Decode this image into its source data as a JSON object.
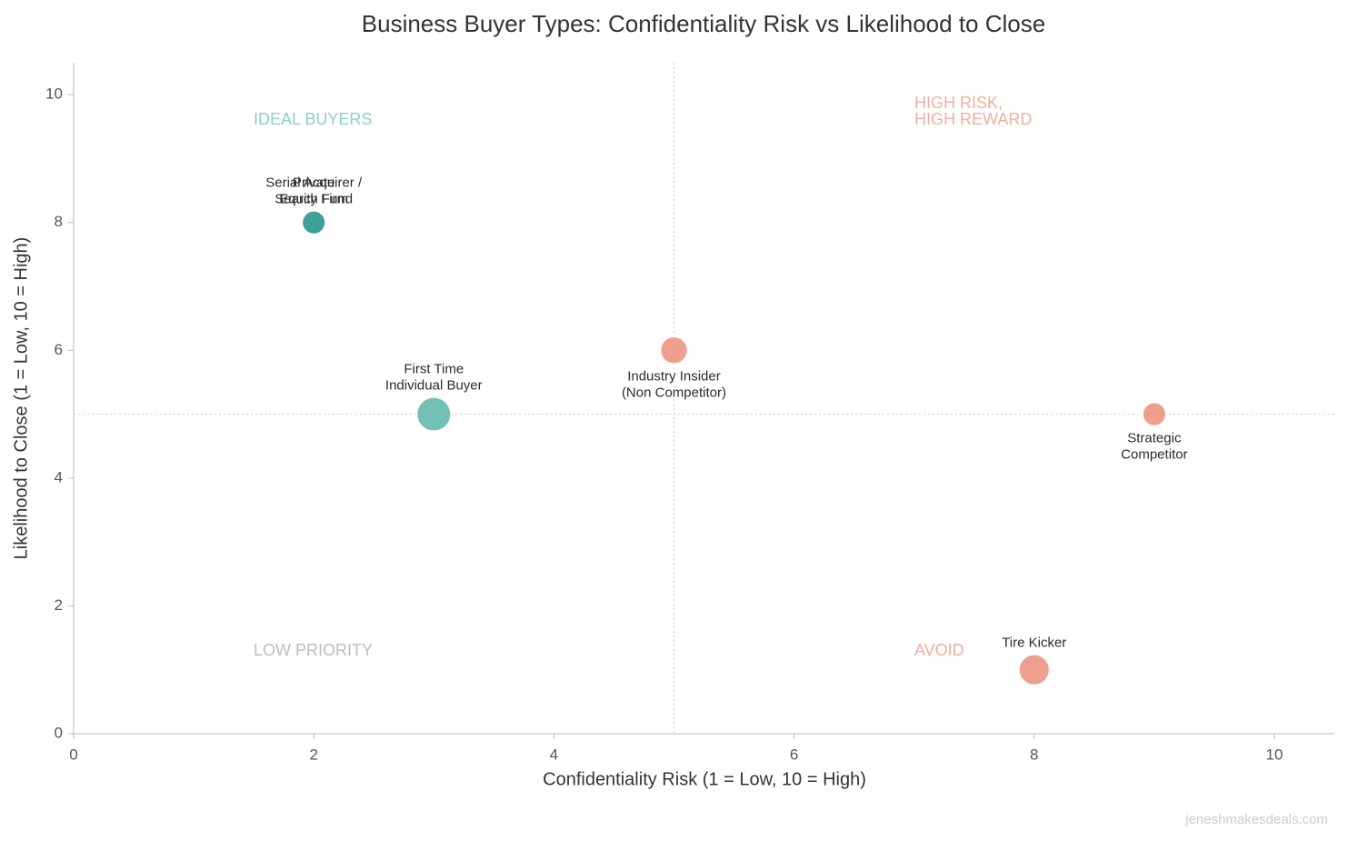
{
  "chart_data": {
    "type": "scatter",
    "title": "Business Buyer Types: Confidentiality Risk vs Likelihood to Close",
    "x_label": "Confidentiality Risk (1 = Low, 10 = High)",
    "y_label": "Likelihood to Close (1 = Low, 10 = High)",
    "labels": [
      "Serial Acquirer /\nSearch Fund",
      "Private\nEquity Firm",
      "First Time\nIndividual Buyer",
      "Industry Insider\n(Non Competitor)",
      "Strategic\nCompetitor",
      "Tire Kicker"
    ],
    "x": [
      2,
      2,
      3,
      5,
      9,
      8
    ],
    "y": [
      8,
      8,
      5,
      6,
      5,
      1
    ],
    "sizes": [
      170,
      170,
      360,
      230,
      170,
      290
    ],
    "colors": [
      "#3a9e94",
      "#3a9e94",
      "#5ab5aa",
      "#ec8e79",
      "#ec8e79",
      "#ec8e79"
    ],
    "label_position": [
      "above",
      "above",
      "above",
      "below",
      "below",
      "above"
    ],
    "xlim": [
      0,
      10.5
    ],
    "ylim": [
      0,
      10.5
    ],
    "xticks": [
      0,
      2,
      4,
      6,
      8,
      10
    ],
    "yticks": [
      0,
      2,
      4,
      6,
      8,
      10
    ],
    "reference_x": 5,
    "reference_y": 5,
    "quadrant_labels": [
      {
        "text": "IDEAL BUYERS",
        "color": "#8fcfc6"
      },
      {
        "text": "HIGH RISK,\nHIGH REWARD",
        "color": "#f1ae9f"
      },
      {
        "text": "LOW PRIORITY",
        "color": "#bdbdbd"
      },
      {
        "text": "AVOID",
        "color": "#f1ae9f"
      }
    ],
    "watermark": "jeneshmakesdeals.com"
  }
}
